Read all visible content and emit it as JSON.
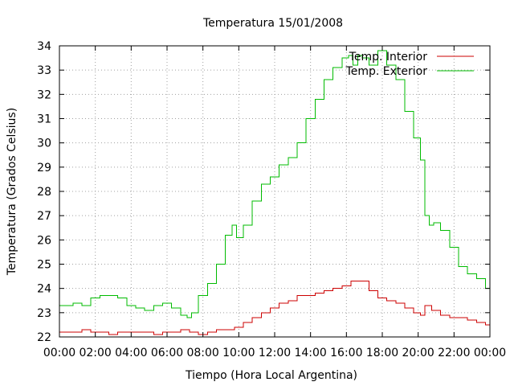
{
  "chart_data": {
    "type": "line",
    "title": "Temperatura 15/01/2008",
    "xlabel": "Tiempo (Hora Local Argentina)",
    "ylabel": "Temperatura (Grados Celsius)",
    "xlim": [
      0,
      24
    ],
    "ylim": [
      22,
      34
    ],
    "x_ticks": [
      "00:00",
      "02:00",
      "04:00",
      "06:00",
      "08:00",
      "10:00",
      "12:00",
      "14:00",
      "16:00",
      "18:00",
      "20:00",
      "22:00",
      "00:00"
    ],
    "y_ticks": [
      "22",
      "23",
      "24",
      "25",
      "26",
      "27",
      "28",
      "29",
      "30",
      "31",
      "32",
      "33",
      "34"
    ],
    "grid": true,
    "legend_position": "top-right",
    "series": [
      {
        "name": "Temp. Interior",
        "color": "#cc0000",
        "x": [
          0,
          0.5,
          1,
          1.5,
          2,
          2.5,
          3,
          3.5,
          4,
          4.5,
          5,
          5.5,
          6,
          6.5,
          7,
          7.5,
          8,
          8.5,
          9,
          9.5,
          10,
          10.5,
          11,
          11.5,
          12,
          12.5,
          13,
          13.5,
          14,
          14.5,
          15,
          15.5,
          16,
          16.5,
          17,
          17.5,
          18,
          18.5,
          19,
          19.5,
          20,
          20.25,
          20.5,
          21,
          21.5,
          22,
          22.5,
          23,
          23.5,
          24
        ],
        "y": [
          22.2,
          22.2,
          22.2,
          22.3,
          22.2,
          22.2,
          22.1,
          22.2,
          22.2,
          22.2,
          22.2,
          22.1,
          22.2,
          22.2,
          22.3,
          22.2,
          22.1,
          22.2,
          22.3,
          22.3,
          22.4,
          22.6,
          22.8,
          23.0,
          23.2,
          23.4,
          23.5,
          23.7,
          23.7,
          23.8,
          23.9,
          24.0,
          24.1,
          24.3,
          24.3,
          23.9,
          23.6,
          23.5,
          23.4,
          23.2,
          23.0,
          22.9,
          23.3,
          23.1,
          22.9,
          22.8,
          22.8,
          22.7,
          22.6,
          22.5
        ]
      },
      {
        "name": "Temp. Exterior",
        "color": "#00bb00",
        "x": [
          0,
          0.5,
          1,
          1.5,
          2,
          2.5,
          3,
          3.5,
          4,
          4.5,
          5,
          5.5,
          6,
          6.5,
          7,
          7.25,
          7.5,
          8,
          8.5,
          9,
          9.5,
          9.75,
          10,
          10.5,
          11,
          11.5,
          12,
          12.5,
          13,
          13.5,
          14,
          14.5,
          15,
          15.5,
          16,
          16.25,
          16.5,
          16.75,
          17,
          17.5,
          18,
          18.5,
          19,
          19.5,
          20,
          20.25,
          20.5,
          20.75,
          21,
          21.5,
          22,
          22.5,
          23,
          23.5,
          24
        ],
        "y": [
          23.3,
          23.3,
          23.4,
          23.3,
          23.6,
          23.7,
          23.7,
          23.6,
          23.3,
          23.2,
          23.1,
          23.3,
          23.4,
          23.2,
          22.9,
          22.8,
          23.0,
          23.7,
          24.2,
          25.0,
          26.2,
          26.6,
          26.1,
          26.6,
          27.6,
          28.3,
          28.6,
          29.1,
          29.4,
          30.0,
          31.0,
          31.8,
          32.6,
          33.1,
          33.5,
          33.6,
          33.2,
          33.6,
          33.5,
          33.2,
          33.8,
          33.2,
          32.6,
          31.3,
          30.2,
          29.3,
          27.0,
          26.6,
          26.7,
          26.4,
          25.7,
          24.9,
          24.6,
          24.4,
          24.0
        ]
      }
    ]
  }
}
